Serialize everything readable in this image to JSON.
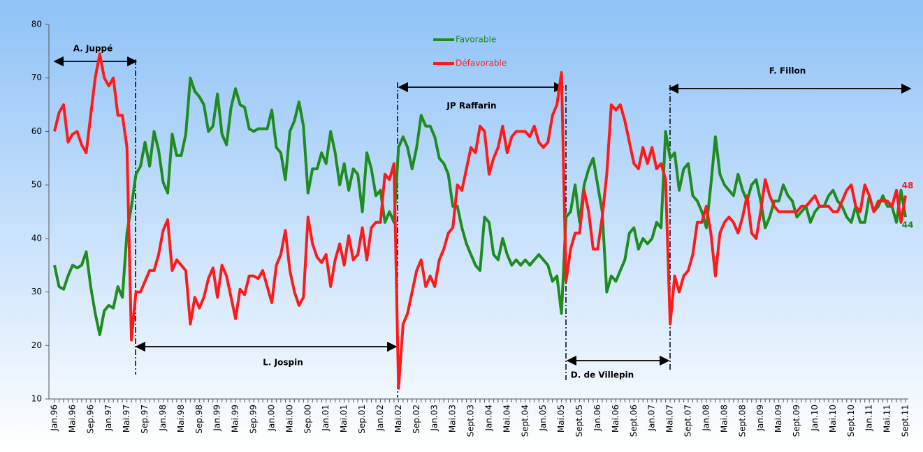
{
  "chart_data": {
    "type": "line",
    "categories": [
      "Jan.96",
      null,
      null,
      null,
      "Mai.96",
      null,
      null,
      null,
      "Sep.96",
      null,
      null,
      null,
      "Jan.97",
      null,
      null,
      null,
      "Mai.97",
      null,
      null,
      null,
      "Sep.97",
      null,
      null,
      null,
      "Jan.98",
      null,
      null,
      null,
      "Mai.98",
      null,
      null,
      null,
      "Sep.98",
      null,
      null,
      null,
      "Jan.99",
      null,
      null,
      null,
      "Mai.99",
      null,
      null,
      null,
      "Sep.99",
      null,
      null,
      null,
      "Jan.00",
      null,
      null,
      null,
      "Mai.00",
      null,
      null,
      null,
      "Sep.00",
      null,
      null,
      null,
      "Jan.01",
      null,
      null,
      null,
      "Mai.01",
      null,
      null,
      null,
      "Sep.01",
      null,
      null,
      null,
      "Jan.02",
      null,
      null,
      null,
      "Mai.02",
      null,
      null,
      null,
      "Sep.02",
      null,
      null,
      null,
      "Jan.03",
      null,
      null,
      null,
      "Mai.03",
      null,
      null,
      null,
      "Sept.03",
      null,
      null,
      null,
      "Jan.04",
      null,
      null,
      null,
      "Mai.04",
      null,
      null,
      null,
      "Sept.04",
      null,
      null,
      null,
      "Jan.05",
      null,
      null,
      null,
      "Mai.05",
      null,
      null,
      null,
      "Sept.05",
      null,
      null,
      null,
      "Jan.06",
      null,
      null,
      null,
      "Mai.06",
      null,
      null,
      null,
      "Sept.06",
      null,
      null,
      null,
      "Jan.07",
      null,
      null,
      null,
      "Mai.07",
      null,
      null,
      null,
      "Sept.07",
      null,
      null,
      null,
      "Jan.08",
      null,
      null,
      null,
      "Mai.08",
      null,
      null,
      null,
      "Sept.08",
      null,
      null,
      null,
      "Jan.09",
      null,
      null,
      null,
      "Mai.09",
      null,
      null,
      null,
      "Sept.09",
      null,
      null,
      null,
      "Jan.10",
      null,
      null,
      null,
      "Mai.10",
      null,
      null,
      null,
      "Sept.10",
      null,
      null,
      null,
      "Jan.11",
      null,
      null,
      null,
      "Mai.11",
      null,
      null,
      null,
      "Sept.11"
    ],
    "series": [
      {
        "name": "Favorable",
        "color": "#1e8c1e",
        "values": [
          35,
          31,
          30.5,
          33,
          35,
          34.5,
          35,
          37.5,
          31,
          26,
          22,
          26.5,
          27.5,
          27,
          31,
          29,
          41,
          46,
          52,
          53.5,
          58,
          53.5,
          60,
          56.5,
          50.5,
          48.5,
          59.5,
          55.5,
          55.5,
          59.5,
          70,
          67.5,
          66.5,
          65,
          60,
          61,
          67,
          59.5,
          57.5,
          64.5,
          68,
          65,
          64.5,
          60.5,
          60,
          60.5,
          60.5,
          60.5,
          64,
          57,
          56,
          51,
          60,
          62,
          65.5,
          61,
          48.5,
          53,
          53,
          56,
          54,
          60,
          56,
          50,
          54,
          49,
          53,
          52,
          45,
          56,
          53,
          48,
          49,
          43,
          45,
          43,
          57,
          59,
          57,
          53,
          57,
          63,
          61,
          61,
          59,
          55,
          54,
          52,
          46,
          46,
          42,
          39,
          37,
          35,
          34,
          44,
          43,
          37,
          36,
          40,
          37,
          35,
          36,
          35,
          36,
          35,
          36,
          37,
          36,
          35,
          32,
          33,
          26,
          44,
          45,
          50,
          43,
          50,
          53,
          55,
          50,
          45,
          30,
          33,
          32,
          34,
          36,
          41,
          42,
          38,
          40,
          39,
          40,
          43,
          42,
          60,
          55,
          56,
          49,
          53,
          54,
          48,
          47,
          45,
          42,
          50,
          59,
          52,
          50,
          49,
          48,
          52,
          49,
          47,
          50,
          51,
          47,
          42,
          44,
          47,
          47,
          50,
          48,
          47,
          44,
          45,
          46,
          43,
          45,
          46,
          46,
          48,
          49,
          47,
          46,
          44,
          43,
          46,
          43,
          43,
          48,
          45,
          46,
          48,
          46,
          46,
          43,
          49,
          44
        ]
      },
      {
        "name": "Défavorable",
        "color": "#ff1a1a",
        "values": [
          60,
          63.5,
          65,
          58,
          59.5,
          60,
          57.5,
          56,
          63,
          70,
          74.5,
          70,
          68.5,
          70,
          63,
          63,
          57,
          21,
          30,
          30,
          32,
          34,
          34,
          37,
          41.5,
          43.5,
          34,
          36,
          35,
          34,
          24,
          29,
          27,
          29,
          32.5,
          34.5,
          29,
          35,
          33,
          29,
          25,
          30.5,
          29.5,
          33,
          33,
          32.5,
          34,
          31,
          28,
          35,
          37,
          41.5,
          34,
          30,
          27.5,
          29,
          44,
          39,
          36.5,
          35.5,
          37,
          31,
          36,
          39,
          35,
          40.5,
          36,
          37,
          42,
          36,
          42,
          43,
          43,
          52,
          51,
          54,
          12,
          24,
          26,
          30,
          34,
          36,
          31,
          33,
          31,
          36,
          38,
          41,
          42,
          50,
          49,
          53,
          57,
          56,
          61,
          60,
          52,
          55,
          57,
          61,
          56,
          59,
          60,
          60,
          60,
          59,
          61,
          58,
          57,
          58,
          63,
          65,
          71,
          32,
          38,
          41,
          41,
          49,
          45,
          38,
          38,
          44,
          52,
          65,
          64,
          65,
          62,
          58,
          54,
          53,
          57,
          54,
          57,
          53,
          54,
          51,
          24,
          33,
          30,
          33,
          34,
          37,
          43,
          43,
          46,
          41,
          33,
          41,
          43,
          44,
          43,
          41,
          44,
          48,
          41,
          40,
          45,
          51,
          48,
          46,
          45,
          45,
          45,
          45,
          45,
          46,
          46,
          47,
          48,
          46,
          46,
          46,
          45,
          45,
          47,
          49,
          50,
          46,
          45,
          50,
          48,
          45,
          47,
          47,
          47,
          46,
          49,
          43,
          48
        ]
      }
    ],
    "annotations": [
      "A. Juppé",
      "L. Jospin",
      "JP Raffarin",
      "D. de Villepin",
      "F. Fillon"
    ],
    "ylim": [
      10,
      80
    ],
    "yticks": [
      10,
      20,
      30,
      40,
      50,
      60,
      70,
      80
    ],
    "grid": false,
    "legend": "top"
  }
}
